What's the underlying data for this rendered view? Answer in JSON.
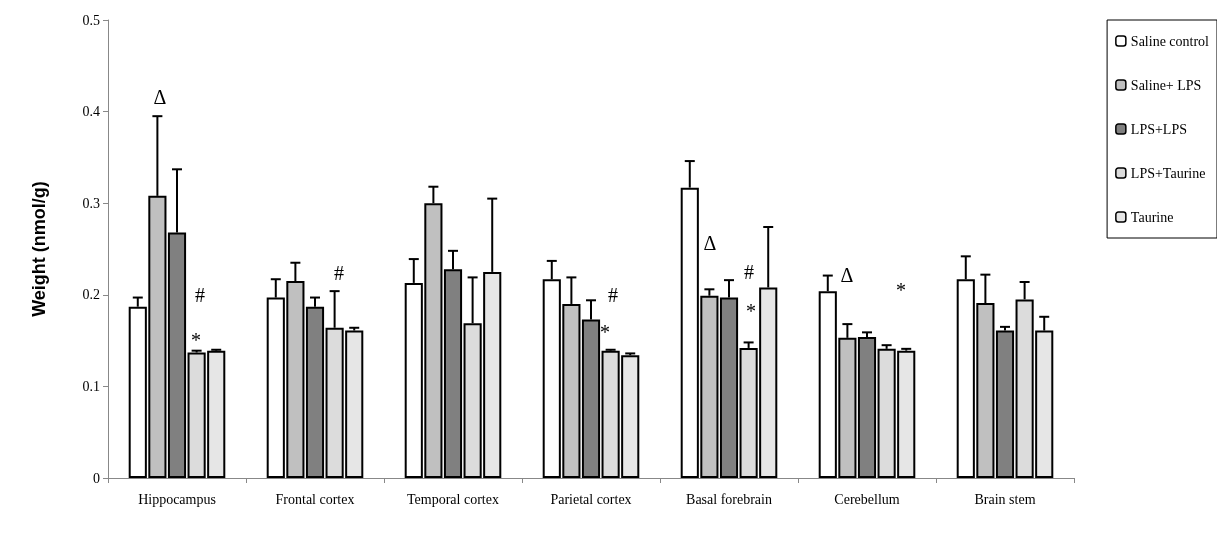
{
  "chart_data": {
    "type": "bar",
    "ylabel": "Weight (nmol/g)",
    "categories": [
      "Hippocampus",
      "Frontal cortex",
      "Temporal cortex",
      "Parietal cortex",
      "Basal forebrain",
      "Cerebellum",
      "Brain stem"
    ],
    "series": [
      {
        "name": "Saline control",
        "color": "#ffffff",
        "values": [
          0.187,
          0.197,
          0.213,
          0.217,
          0.317,
          0.204,
          0.217
        ],
        "errors": [
          [
            0.187,
            0.197
          ],
          [
            0.197,
            0.217
          ],
          [
            0.213,
            0.239
          ],
          [
            0.217,
            0.237
          ],
          [
            0.317,
            0.346
          ],
          [
            0.204,
            0.221
          ],
          [
            0.217,
            0.242
          ]
        ]
      },
      {
        "name": "Saline+ LPS",
        "color": "#c0c0c0",
        "values": [
          0.308,
          0.215,
          0.3,
          0.19,
          0.199,
          0.153,
          0.191
        ],
        "errors": [
          [
            0.308,
            0.395
          ],
          [
            0.215,
            0.235
          ],
          [
            0.3,
            0.318
          ],
          [
            0.19,
            0.219
          ],
          [
            0.199,
            0.206
          ],
          [
            0.153,
            0.168
          ],
          [
            0.191,
            0.222
          ]
        ]
      },
      {
        "name": "LPS+LPS",
        "color": "#808080",
        "values": [
          0.268,
          0.187,
          0.228,
          0.173,
          0.197,
          0.154,
          0.161
        ],
        "errors": [
          [
            0.268,
            0.337
          ],
          [
            0.187,
            0.197
          ],
          [
            0.228,
            0.248
          ],
          [
            0.173,
            0.194
          ],
          [
            0.197,
            0.216
          ],
          [
            0.154,
            0.159
          ],
          [
            0.161,
            0.165
          ]
        ]
      },
      {
        "name": "LPS+Taurine",
        "color": "#dcdcdc",
        "values": [
          0.137,
          0.164,
          0.169,
          0.139,
          0.142,
          0.141,
          0.195
        ],
        "errors": [
          [
            0.137,
            0.139
          ],
          [
            0.164,
            0.204
          ],
          [
            0.169,
            0.219
          ],
          [
            0.139,
            0.14
          ],
          [
            0.142,
            0.148
          ],
          [
            0.141,
            0.145
          ],
          [
            0.195,
            0.214
          ]
        ]
      },
      {
        "name": "Taurine",
        "color": "#e6e6e6",
        "values": [
          0.139,
          0.161,
          0.225,
          0.134,
          0.208,
          0.139,
          0.161
        ],
        "errors": [
          [
            0.139,
            0.14
          ],
          [
            0.161,
            0.164
          ],
          [
            0.225,
            0.305
          ],
          [
            0.134,
            0.136
          ],
          [
            0.208,
            0.274
          ],
          [
            0.139,
            0.141
          ],
          [
            0.161,
            0.176
          ]
        ]
      }
    ],
    "ylim": [
      0,
      0.5
    ],
    "yticks": [
      0,
      0.1,
      0.2,
      0.3,
      0.4,
      0.5
    ],
    "grid": false,
    "legend": "right",
    "annotations": [
      "Δ",
      "#",
      "*",
      "#",
      "#",
      "*",
      "Δ",
      "#",
      "*",
      "Δ",
      "*"
    ]
  }
}
